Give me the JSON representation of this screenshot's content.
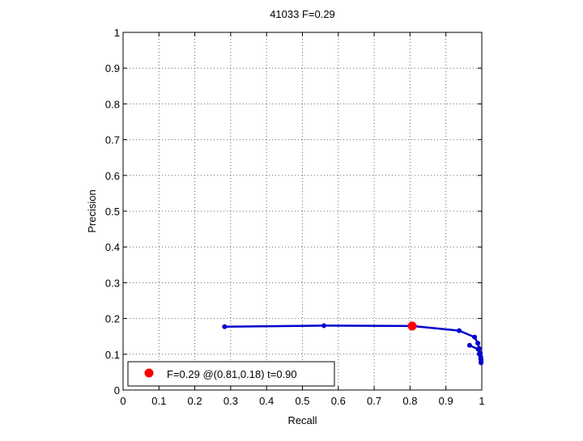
{
  "chart_data": {
    "type": "line",
    "title": "41033 F=0.29",
    "xlabel": "Recall",
    "ylabel": "Precision",
    "xlim": [
      0,
      1
    ],
    "ylim": [
      0,
      1
    ],
    "xticks": [
      "0",
      "0.1",
      "0.2",
      "0.3",
      "0.4",
      "0.5",
      "0.6",
      "0.7",
      "0.8",
      "0.9",
      "1"
    ],
    "yticks": [
      "0",
      "0.1",
      "0.2",
      "0.3",
      "0.4",
      "0.5",
      "0.6",
      "0.7",
      "0.8",
      "0.9",
      "1"
    ],
    "grid": true,
    "legend_position": "bottom-left",
    "series": [
      {
        "color": "#0000cc",
        "x": [
          0.283,
          0.56,
          0.806,
          0.937,
          0.98,
          0.989,
          0.993,
          0.996,
          0.997,
          0.998,
          0.998,
          0.998,
          0.997,
          0.993,
          0.99,
          0.966
        ],
        "y": [
          0.177,
          0.18,
          0.179,
          0.166,
          0.148,
          0.131,
          0.116,
          0.103,
          0.093,
          0.085,
          0.079,
          0.076,
          0.088,
          0.101,
          0.114,
          0.125
        ]
      }
    ],
    "best_point": {
      "label": "F=0.29 @(0.81,0.18) t=0.90",
      "x": 0.806,
      "y": 0.179,
      "color": "#ff0000"
    }
  }
}
